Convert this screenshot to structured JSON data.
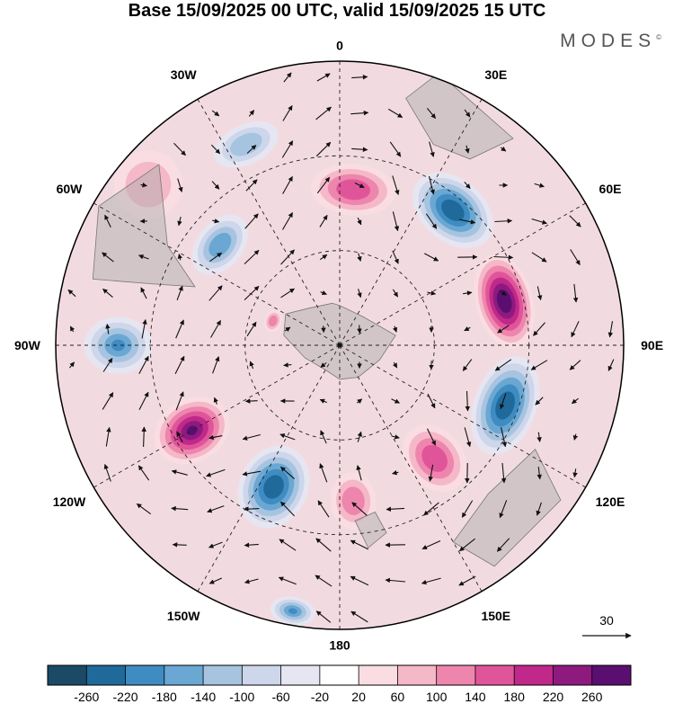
{
  "title": "Base 15/09/2025 00 UTC, valid 15/09/2025 15 UTC",
  "brand": "MODES",
  "brand_mark": "©",
  "longitude_labels": [
    {
      "text": "0",
      "lon": 0
    },
    {
      "text": "30E",
      "lon": 30
    },
    {
      "text": "60E",
      "lon": 60
    },
    {
      "text": "90E",
      "lon": 90
    },
    {
      "text": "120E",
      "lon": 120
    },
    {
      "text": "150E",
      "lon": 150
    },
    {
      "text": "180",
      "lon": 180
    },
    {
      "text": "150W",
      "lon": -150
    },
    {
      "text": "120W",
      "lon": -120
    },
    {
      "text": "90W",
      "lon": -90
    },
    {
      "text": "60W",
      "lon": -60
    },
    {
      "text": "30W",
      "lon": -30
    }
  ],
  "reference_vector": {
    "label": "30"
  },
  "colorbar": {
    "levels": [
      "-260",
      "-220",
      "-180",
      "-140",
      "-100",
      "-60",
      "-20",
      "20",
      "60",
      "100",
      "140",
      "180",
      "220",
      "260"
    ],
    "colors": [
      "#1b4a66",
      "#1f6a9a",
      "#3e8cc2",
      "#6aa7d3",
      "#a6c4e0",
      "#cdd6ea",
      "#e6e6f2",
      "#ffffff",
      "#f9dde2",
      "#f5b8c8",
      "#ee85ad",
      "#e0559a",
      "#c0288a",
      "#8e1a80",
      "#5a0f70"
    ]
  },
  "anomalies": [
    {
      "name": "northeast-pink",
      "lon": 5,
      "lat_frac": 0.55,
      "value": 150,
      "rx": 0.15,
      "ry": 0.09
    },
    {
      "name": "north-blue",
      "lon": -25,
      "lat_frac": 0.78,
      "value": -110,
      "rx": 0.12,
      "ry": 0.07
    },
    {
      "name": "east-blue",
      "lon": 40,
      "lat_frac": 0.62,
      "value": -240,
      "rx": 0.16,
      "ry": 0.11
    },
    {
      "name": "east-purple",
      "lon": 75,
      "lat_frac": 0.6,
      "value": 270,
      "rx": 0.17,
      "ry": 0.1
    },
    {
      "name": "southeast-blue",
      "lon": 110,
      "lat_frac": 0.62,
      "value": -250,
      "rx": 0.18,
      "ry": 0.11
    },
    {
      "name": "southeast-pink",
      "lon": 140,
      "lat_frac": 0.52,
      "value": 150,
      "rx": 0.1,
      "ry": 0.13
    },
    {
      "name": "south-pink",
      "lon": 175,
      "lat_frac": 0.55,
      "value": 120,
      "rx": 0.08,
      "ry": 0.1
    },
    {
      "name": "south-blue",
      "lon": -155,
      "lat_frac": 0.55,
      "value": -250,
      "rx": 0.12,
      "ry": 0.15
    },
    {
      "name": "far-south-blue",
      "lon": -170,
      "lat_frac": 0.95,
      "value": -180,
      "rx": 0.08,
      "ry": 0.05
    },
    {
      "name": "southwest-purple",
      "lon": -120,
      "lat_frac": 0.6,
      "value": 260,
      "rx": 0.11,
      "ry": 0.14
    },
    {
      "name": "west-blue",
      "lon": -90,
      "lat_frac": 0.78,
      "value": -180,
      "rx": 0.1,
      "ry": 0.12
    },
    {
      "name": "northwest-blue",
      "lon": -50,
      "lat_frac": 0.55,
      "value": -170,
      "rx": 0.12,
      "ry": 0.08
    },
    {
      "name": "northwest-pink",
      "lon": -50,
      "lat_frac": 0.88,
      "value": 90,
      "rx": 0.12,
      "ry": 0.12
    },
    {
      "name": "pole-pink",
      "lon": -70,
      "lat_frac": 0.25,
      "value": 120,
      "rx": 0.04,
      "ry": 0.03
    }
  ]
}
